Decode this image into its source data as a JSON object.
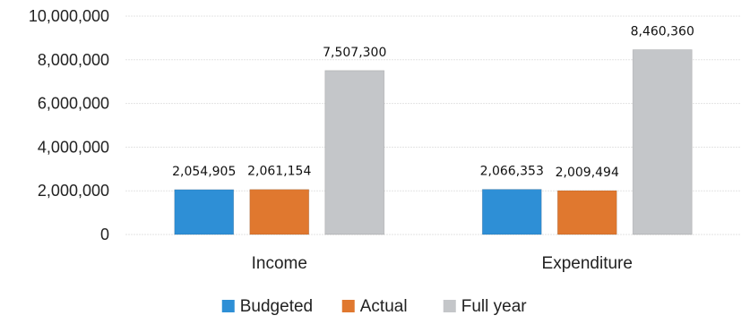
{
  "chart_data": {
    "type": "bar",
    "categories": [
      "Income",
      "Expenditure"
    ],
    "series": [
      {
        "name": "Budgeted",
        "values": [
          2054905,
          2066353
        ],
        "labels": [
          "2,054,905",
          "2,066,353"
        ],
        "color": "#2E8FD6"
      },
      {
        "name": "Actual",
        "values": [
          2061154,
          2009494
        ],
        "labels": [
          "2,061,154",
          "2,009,494"
        ],
        "color": "#E0782F"
      },
      {
        "name": "Full year",
        "values": [
          7507300,
          8460360
        ],
        "labels": [
          "7,507,300",
          "8,460,360"
        ],
        "color": "#C4C6C9"
      }
    ],
    "ylim": [
      0,
      10000000
    ],
    "yticks": [
      0,
      2000000,
      4000000,
      6000000,
      8000000,
      10000000
    ],
    "ytick_labels": [
      "0",
      "2,000,000",
      "4,000,000",
      "6,000,000",
      "8,000,000",
      "10,000,000"
    ],
    "grid": true,
    "legend_position": "bottom",
    "title": "",
    "xlabel": "",
    "ylabel": ""
  }
}
